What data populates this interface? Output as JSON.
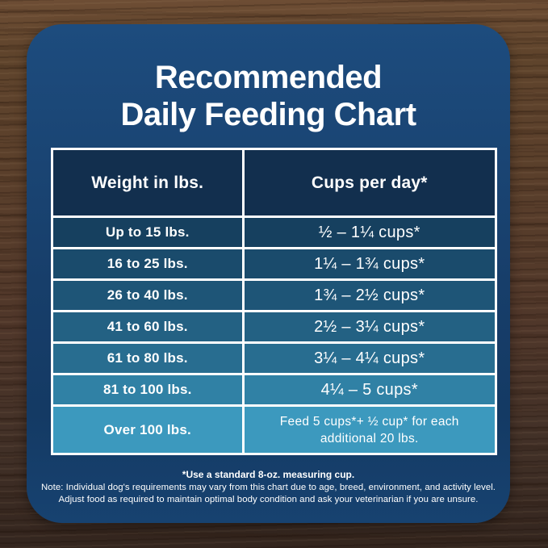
{
  "title": {
    "line1": "Recommended",
    "line2": "Daily Feeding Chart"
  },
  "table": {
    "headers": {
      "weight": "Weight in lbs.",
      "cups": "Cups per day*"
    },
    "rows": [
      {
        "weight": "Up to 15 lbs.",
        "cups": "½ – 1¼ cups*",
        "color": "#16405F"
      },
      {
        "weight": "16 to 25 lbs.",
        "cups": "1¼ – 1¾ cups*",
        "color": "#1A4B6C"
      },
      {
        "weight": "26 to 40 lbs.",
        "cups": "1¾ – 2½ cups*",
        "color": "#1E5577"
      },
      {
        "weight": "41 to 60 lbs.",
        "cups": "2½ – 3¼ cups*",
        "color": "#236183"
      },
      {
        "weight": "61 to 80 lbs.",
        "cups": "3¼ – 4¼ cups*",
        "color": "#286D90"
      },
      {
        "weight": "81 to 100 lbs.",
        "cups": "4¼ – 5 cups*",
        "color": "#3081A5"
      },
      {
        "weight": "Over 100 lbs.",
        "cups": "Feed 5 cups*+ ½ cup* for each additional 20 lbs.",
        "color": "#3C99BE"
      }
    ],
    "header_bg": "#122F4E"
  },
  "notes": {
    "line1": "*Use a standard 8-oz. measuring cup.",
    "line2": "Note: Individual dog's requirements may vary from this chart due to age, breed, environment, and activity level.",
    "line3": "Adjust food as required to maintain optimal body condition and ask your veterinarian if you are unsure."
  },
  "colors": {
    "card_background": "#17406C",
    "table_border": "#FFFFFF",
    "text": "#FFFFFF",
    "wood_top": "#6D4D34",
    "wood_bottom": "#33251E"
  }
}
